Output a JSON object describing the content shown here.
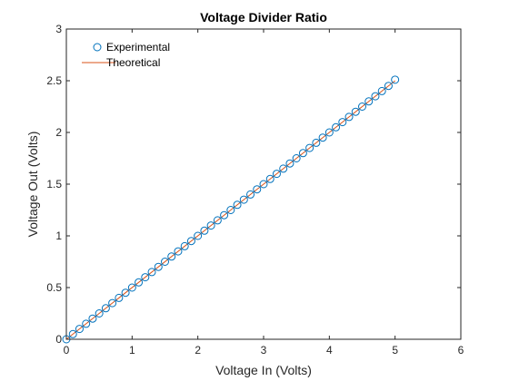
{
  "chart_data": {
    "type": "scatter",
    "title": "Voltage Divider Ratio",
    "xlabel": "Voltage In (Volts)",
    "ylabel": "Voltage Out (Volts)",
    "xlim": [
      0,
      6
    ],
    "ylim": [
      0,
      3
    ],
    "xticks": [
      "0",
      "1",
      "2",
      "3",
      "4",
      "5",
      "6"
    ],
    "yticks": [
      "0",
      "0.5",
      "1",
      "1.5",
      "2",
      "2.5",
      "3"
    ],
    "grid": false,
    "legend_position": "top-left",
    "series": [
      {
        "name": "Experimental",
        "style": "markers",
        "marker": "circle",
        "color": "#0072bd",
        "x": [
          0,
          0.1,
          0.2,
          0.3,
          0.4,
          0.5,
          0.6,
          0.7,
          0.8,
          0.9,
          1.0,
          1.1,
          1.2,
          1.3,
          1.4,
          1.5,
          1.6,
          1.7,
          1.8,
          1.9,
          2.0,
          2.1,
          2.2,
          2.3,
          2.4,
          2.5,
          2.6,
          2.7,
          2.8,
          2.9,
          3.0,
          3.1,
          3.2,
          3.3,
          3.4,
          3.5,
          3.6,
          3.7,
          3.8,
          3.9,
          4.0,
          4.1,
          4.2,
          4.3,
          4.4,
          4.5,
          4.6,
          4.7,
          4.8,
          4.9,
          5.0
        ],
        "y": [
          0,
          0.05,
          0.1,
          0.15,
          0.2,
          0.25,
          0.3,
          0.35,
          0.4,
          0.45,
          0.5,
          0.55,
          0.6,
          0.65,
          0.7,
          0.75,
          0.8,
          0.85,
          0.9,
          0.95,
          1.0,
          1.05,
          1.1,
          1.15,
          1.2,
          1.25,
          1.3,
          1.35,
          1.4,
          1.45,
          1.5,
          1.55,
          1.6,
          1.65,
          1.7,
          1.75,
          1.8,
          1.85,
          1.9,
          1.95,
          2.0,
          2.05,
          2.1,
          2.15,
          2.2,
          2.25,
          2.3,
          2.35,
          2.4,
          2.45,
          2.51
        ]
      },
      {
        "name": "Theoretical",
        "style": "line",
        "color": "#d95319",
        "x": [
          0,
          5
        ],
        "y": [
          0,
          2.5
        ]
      }
    ]
  }
}
